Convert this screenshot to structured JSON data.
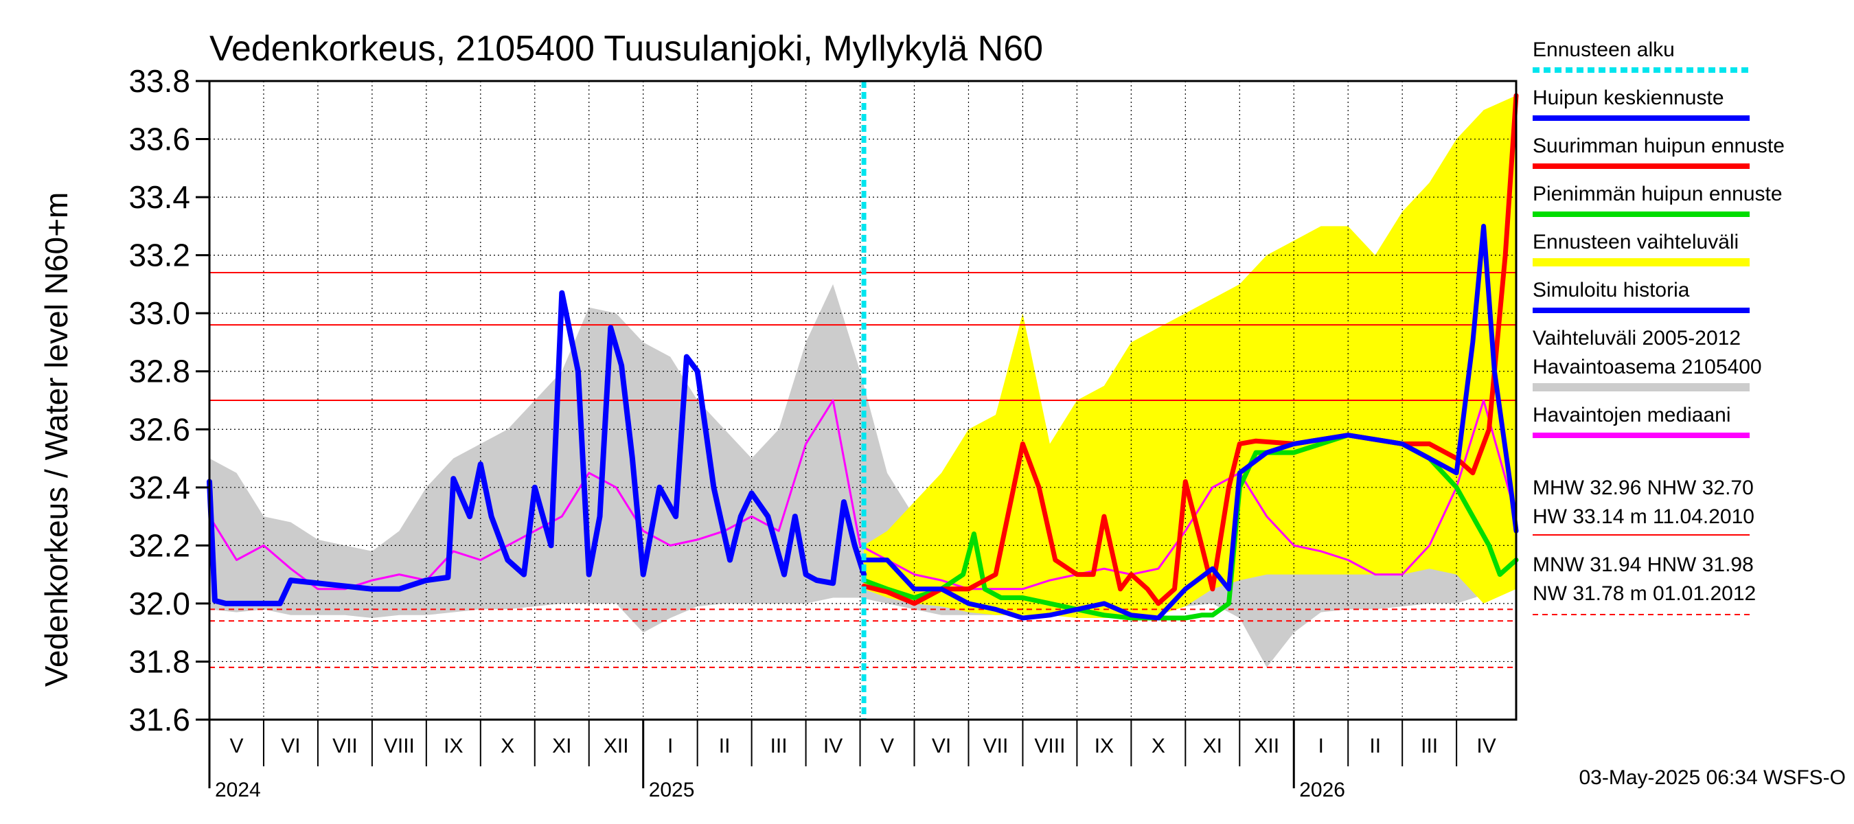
{
  "chart_data": {
    "type": "line",
    "title": "Vedenkorkeus, 2105400 Tuusulanjoki, Myllykylä N60",
    "ylabel": "Vedenkorkeus / Water level   N60+m",
    "ylim": [
      31.6,
      33.8
    ],
    "y_ticks": [
      "31.6",
      "31.8",
      "32.0",
      "32.2",
      "32.4",
      "32.6",
      "32.8",
      "33.0",
      "33.2",
      "33.4",
      "33.6",
      "33.8"
    ],
    "months": [
      {
        "label": "V",
        "start": 0
      },
      {
        "label": "VI",
        "start": 1
      },
      {
        "label": "VII",
        "start": 2
      },
      {
        "label": "VIII",
        "start": 3
      },
      {
        "label": "IX",
        "start": 4
      },
      {
        "label": "X",
        "start": 5
      },
      {
        "label": "XI",
        "start": 6
      },
      {
        "label": "XII",
        "start": 7
      },
      {
        "label": "I",
        "start": 8
      },
      {
        "label": "II",
        "start": 9
      },
      {
        "label": "III",
        "start": 10
      },
      {
        "label": "IV",
        "start": 11
      },
      {
        "label": "V",
        "start": 12
      },
      {
        "label": "VI",
        "start": 13
      },
      {
        "label": "VII",
        "start": 14
      },
      {
        "label": "VIII",
        "start": 15
      },
      {
        "label": "IX",
        "start": 16
      },
      {
        "label": "X",
        "start": 17
      },
      {
        "label": "XI",
        "start": 18
      },
      {
        "label": "XII",
        "start": 19
      },
      {
        "label": "I",
        "start": 20
      },
      {
        "label": "II",
        "start": 21
      },
      {
        "label": "III",
        "start": 22
      },
      {
        "label": "IV",
        "start": 23
      }
    ],
    "years": [
      {
        "label": "2024",
        "at": 0
      },
      {
        "label": "2025",
        "at": 8
      },
      {
        "label": "2026",
        "at": 20
      }
    ],
    "x_range": [
      0,
      24.1
    ],
    "forecast_start": 12.07,
    "reference_lines": [
      {
        "name": "HW",
        "value": 33.14,
        "style": "solid"
      },
      {
        "name": "MHW",
        "value": 32.96,
        "style": "solid"
      },
      {
        "name": "NHW",
        "value": 32.7,
        "style": "solid"
      },
      {
        "name": "HNW",
        "value": 31.98,
        "style": "dashed"
      },
      {
        "name": "MNW",
        "value": 31.94,
        "style": "dashed"
      },
      {
        "name": "NW",
        "value": 31.78,
        "style": "dashed"
      }
    ],
    "gray_band": {
      "x": [
        0,
        0.5,
        1,
        1.5,
        2,
        2.5,
        3,
        3.5,
        4,
        4.5,
        5,
        5.5,
        6,
        6.5,
        7,
        7.5,
        8,
        8.5,
        9,
        9.5,
        10,
        10.5,
        11,
        11.5,
        12,
        12.5,
        13,
        13.5,
        14,
        14.5,
        15,
        15.5,
        16,
        16.5,
        17,
        17.5,
        18,
        18.5,
        19,
        19.5,
        20,
        20.5,
        21,
        21.5,
        22,
        22.5,
        23,
        23.5,
        24.1
      ],
      "upper": [
        32.5,
        32.45,
        32.3,
        32.28,
        32.22,
        32.2,
        32.18,
        32.25,
        32.4,
        32.5,
        32.55,
        32.6,
        32.7,
        32.8,
        33.02,
        33.0,
        32.9,
        32.85,
        32.7,
        32.6,
        32.5,
        32.6,
        32.9,
        33.1,
        32.8,
        32.45,
        32.3,
        32.25,
        32.2,
        32.2,
        32.2,
        32.25,
        32.3,
        32.4,
        32.5,
        32.5,
        32.55,
        32.6,
        32.65,
        32.6,
        32.5,
        32.55,
        32.6,
        32.65,
        32.7,
        32.8,
        32.9,
        32.4,
        32.2
      ],
      "lower": [
        31.98,
        31.97,
        31.98,
        31.96,
        31.96,
        31.96,
        31.95,
        31.96,
        31.96,
        31.97,
        31.98,
        31.98,
        31.99,
        32.0,
        32.0,
        32.0,
        31.9,
        31.95,
        31.99,
        32.0,
        32.0,
        32.0,
        32.0,
        32.02,
        32.02,
        32.0,
        31.98,
        31.96,
        31.96,
        31.96,
        31.96,
        31.96,
        31.96,
        31.96,
        31.97,
        31.98,
        31.99,
        32.0,
        31.95,
        31.78,
        31.9,
        31.97,
        31.98,
        31.98,
        31.99,
        32.0,
        32.0,
        32.03,
        32.05
      ]
    },
    "yellow_band": {
      "x": [
        12.07,
        12.5,
        13,
        13.5,
        14,
        14.5,
        15,
        15.5,
        16,
        16.5,
        17,
        17.5,
        18,
        18.5,
        19,
        19.5,
        20,
        20.5,
        21,
        21.5,
        22,
        22.5,
        23,
        23.5,
        24.1
      ],
      "upper": [
        32.2,
        32.25,
        32.35,
        32.45,
        32.6,
        32.65,
        33.0,
        32.55,
        32.7,
        32.75,
        32.9,
        32.95,
        33.0,
        33.05,
        33.1,
        33.2,
        33.25,
        33.3,
        33.3,
        33.2,
        33.35,
        33.45,
        33.6,
        33.7,
        33.75
      ],
      "lower": [
        32.05,
        32.02,
        32.0,
        31.99,
        31.97,
        31.96,
        31.96,
        31.96,
        31.95,
        31.95,
        31.95,
        31.96,
        31.99,
        32.05,
        32.08,
        32.1,
        32.1,
        32.1,
        32.1,
        32.1,
        32.1,
        32.12,
        32.1,
        32.0,
        32.05
      ]
    },
    "series": [
      {
        "name": "Havaintojen mediaani",
        "color": "#ff00ff",
        "width": 3,
        "x": [
          0,
          0.5,
          1,
          1.5,
          2,
          2.5,
          3,
          3.5,
          4,
          4.5,
          5,
          5.5,
          6,
          6.5,
          7,
          7.5,
          8,
          8.5,
          9,
          9.5,
          10,
          10.5,
          11,
          11.5,
          12,
          12.5,
          13,
          13.5,
          14,
          14.5,
          15,
          15.5,
          16,
          16.5,
          17,
          17.5,
          18,
          18.5,
          19,
          19.5,
          20,
          20.5,
          21,
          21.5,
          22,
          22.5,
          23,
          23.5,
          24.1
        ],
        "y": [
          32.3,
          32.15,
          32.2,
          32.12,
          32.05,
          32.05,
          32.08,
          32.1,
          32.08,
          32.18,
          32.15,
          32.2,
          32.25,
          32.3,
          32.45,
          32.4,
          32.25,
          32.2,
          32.22,
          32.25,
          32.3,
          32.25,
          32.55,
          32.7,
          32.2,
          32.15,
          32.1,
          32.08,
          32.05,
          32.05,
          32.05,
          32.08,
          32.1,
          32.12,
          32.1,
          32.12,
          32.25,
          32.4,
          32.45,
          32.3,
          32.2,
          32.18,
          32.15,
          32.1,
          32.1,
          32.2,
          32.4,
          32.7,
          32.3
        ]
      },
      {
        "name": "Simuloitu historia",
        "color": "#0000ff",
        "width": 8,
        "x": [
          0,
          0.1,
          0.3,
          1,
          1.3,
          1.5,
          2,
          3,
          3.5,
          4,
          4.4,
          4.5,
          4.8,
          5,
          5.2,
          5.5,
          5.8,
          6,
          6.3,
          6.5,
          6.8,
          7,
          7.2,
          7.4,
          7.6,
          7.8,
          8,
          8.3,
          8.6,
          8.8,
          9,
          9.3,
          9.6,
          9.8,
          10,
          10.3,
          10.6,
          10.8,
          11,
          11.2,
          11.5,
          11.7,
          11.9,
          12.07
        ],
        "y": [
          32.42,
          32.01,
          32.0,
          32.0,
          32.0,
          32.08,
          32.07,
          32.05,
          32.05,
          32.08,
          32.09,
          32.43,
          32.3,
          32.48,
          32.3,
          32.15,
          32.1,
          32.4,
          32.2,
          33.07,
          32.8,
          32.1,
          32.3,
          32.95,
          32.82,
          32.5,
          32.1,
          32.4,
          32.3,
          32.85,
          32.8,
          32.4,
          32.15,
          32.3,
          32.38,
          32.3,
          32.1,
          32.3,
          32.1,
          32.08,
          32.07,
          32.35,
          32.2,
          32.1
        ]
      },
      {
        "name": "Pienimmän huipun ennuste",
        "color": "#00dd00",
        "width": 7,
        "x": [
          12.07,
          12.5,
          13,
          13.5,
          13.9,
          14.1,
          14.3,
          14.6,
          15,
          15.5,
          16,
          16.5,
          17,
          17.5,
          18,
          18.3,
          18.5,
          18.8,
          19,
          19.3,
          20,
          21,
          22,
          22.5,
          23,
          23.3,
          23.6,
          23.8,
          24.1
        ],
        "y": [
          32.08,
          32.05,
          32.02,
          32.05,
          32.1,
          32.24,
          32.05,
          32.02,
          32.02,
          32.0,
          31.98,
          31.96,
          31.95,
          31.95,
          31.95,
          31.96,
          31.96,
          32.0,
          32.4,
          32.52,
          32.52,
          32.58,
          32.55,
          32.5,
          32.4,
          32.3,
          32.2,
          32.1,
          32.15
        ]
      },
      {
        "name": "Suurimman huipun ennuste",
        "color": "#ff0000",
        "width": 7,
        "x": [
          12.07,
          12.5,
          13,
          13.5,
          14,
          14.5,
          15,
          15.3,
          15.6,
          16,
          16.3,
          16.5,
          16.8,
          17,
          17.3,
          17.5,
          17.8,
          18,
          18.3,
          18.5,
          18.8,
          19,
          19.3,
          20,
          21,
          22,
          22.5,
          23,
          23.3,
          23.6,
          23.9,
          24.1
        ],
        "y": [
          32.06,
          32.04,
          32.0,
          32.05,
          32.05,
          32.1,
          32.55,
          32.4,
          32.15,
          32.1,
          32.1,
          32.3,
          32.05,
          32.1,
          32.05,
          32.0,
          32.05,
          32.42,
          32.2,
          32.05,
          32.4,
          32.55,
          32.56,
          32.55,
          32.58,
          32.55,
          32.55,
          32.5,
          32.45,
          32.6,
          33.2,
          33.75
        ]
      },
      {
        "name": "Huipun keskiennuste",
        "color": "#0000ff",
        "width": 7,
        "x": [
          12.07,
          12.5,
          13,
          13.5,
          14,
          14.5,
          15,
          15.5,
          16,
          16.5,
          17,
          17.5,
          18,
          18.5,
          18.8,
          19,
          19.5,
          20,
          21,
          22,
          22.5,
          23,
          23.3,
          23.5,
          23.7,
          24.0,
          24.1
        ],
        "y": [
          32.15,
          32.15,
          32.05,
          32.05,
          32.0,
          31.98,
          31.95,
          31.96,
          31.98,
          32.0,
          31.96,
          31.95,
          32.05,
          32.12,
          32.05,
          32.45,
          32.52,
          32.55,
          32.58,
          32.55,
          32.5,
          32.45,
          32.9,
          33.3,
          32.8,
          32.4,
          32.25
        ]
      }
    ]
  },
  "legend": [
    {
      "label": "Ennusteen alku",
      "color": "#00e5ee",
      "style": "dashed"
    },
    {
      "label": "Huipun keskiennuste",
      "color": "#0000ff",
      "style": "solid"
    },
    {
      "label": "Suurimman huipun ennuste",
      "color": "#ff0000",
      "style": "solid"
    },
    {
      "label": "Pienimmän huipun ennuste",
      "color": "#00dd00",
      "style": "solid"
    },
    {
      "label": "Ennusteen vaihteluväli",
      "color": "#ffff00",
      "style": "solid"
    },
    {
      "label": "Simuloitu historia",
      "color": "#0000ff",
      "style": "solid"
    },
    {
      "label": "Vaihteluväli 2005-2012\n Havaintoasema 2105400",
      "color": "#cccccc",
      "style": "solid"
    },
    {
      "label": "Havaintojen mediaani",
      "color": "#ff00ff",
      "style": "solid"
    }
  ],
  "stats": {
    "line1": "MHW  32.96 NHW  32.70",
    "line2": "HW  33.14 m 11.04.2010",
    "line3": "MNW  31.94 HNW  31.98",
    "line4": "NW  31.78 m 01.01.2012"
  },
  "footer": "03-May-2025 06:34 WSFS-O"
}
